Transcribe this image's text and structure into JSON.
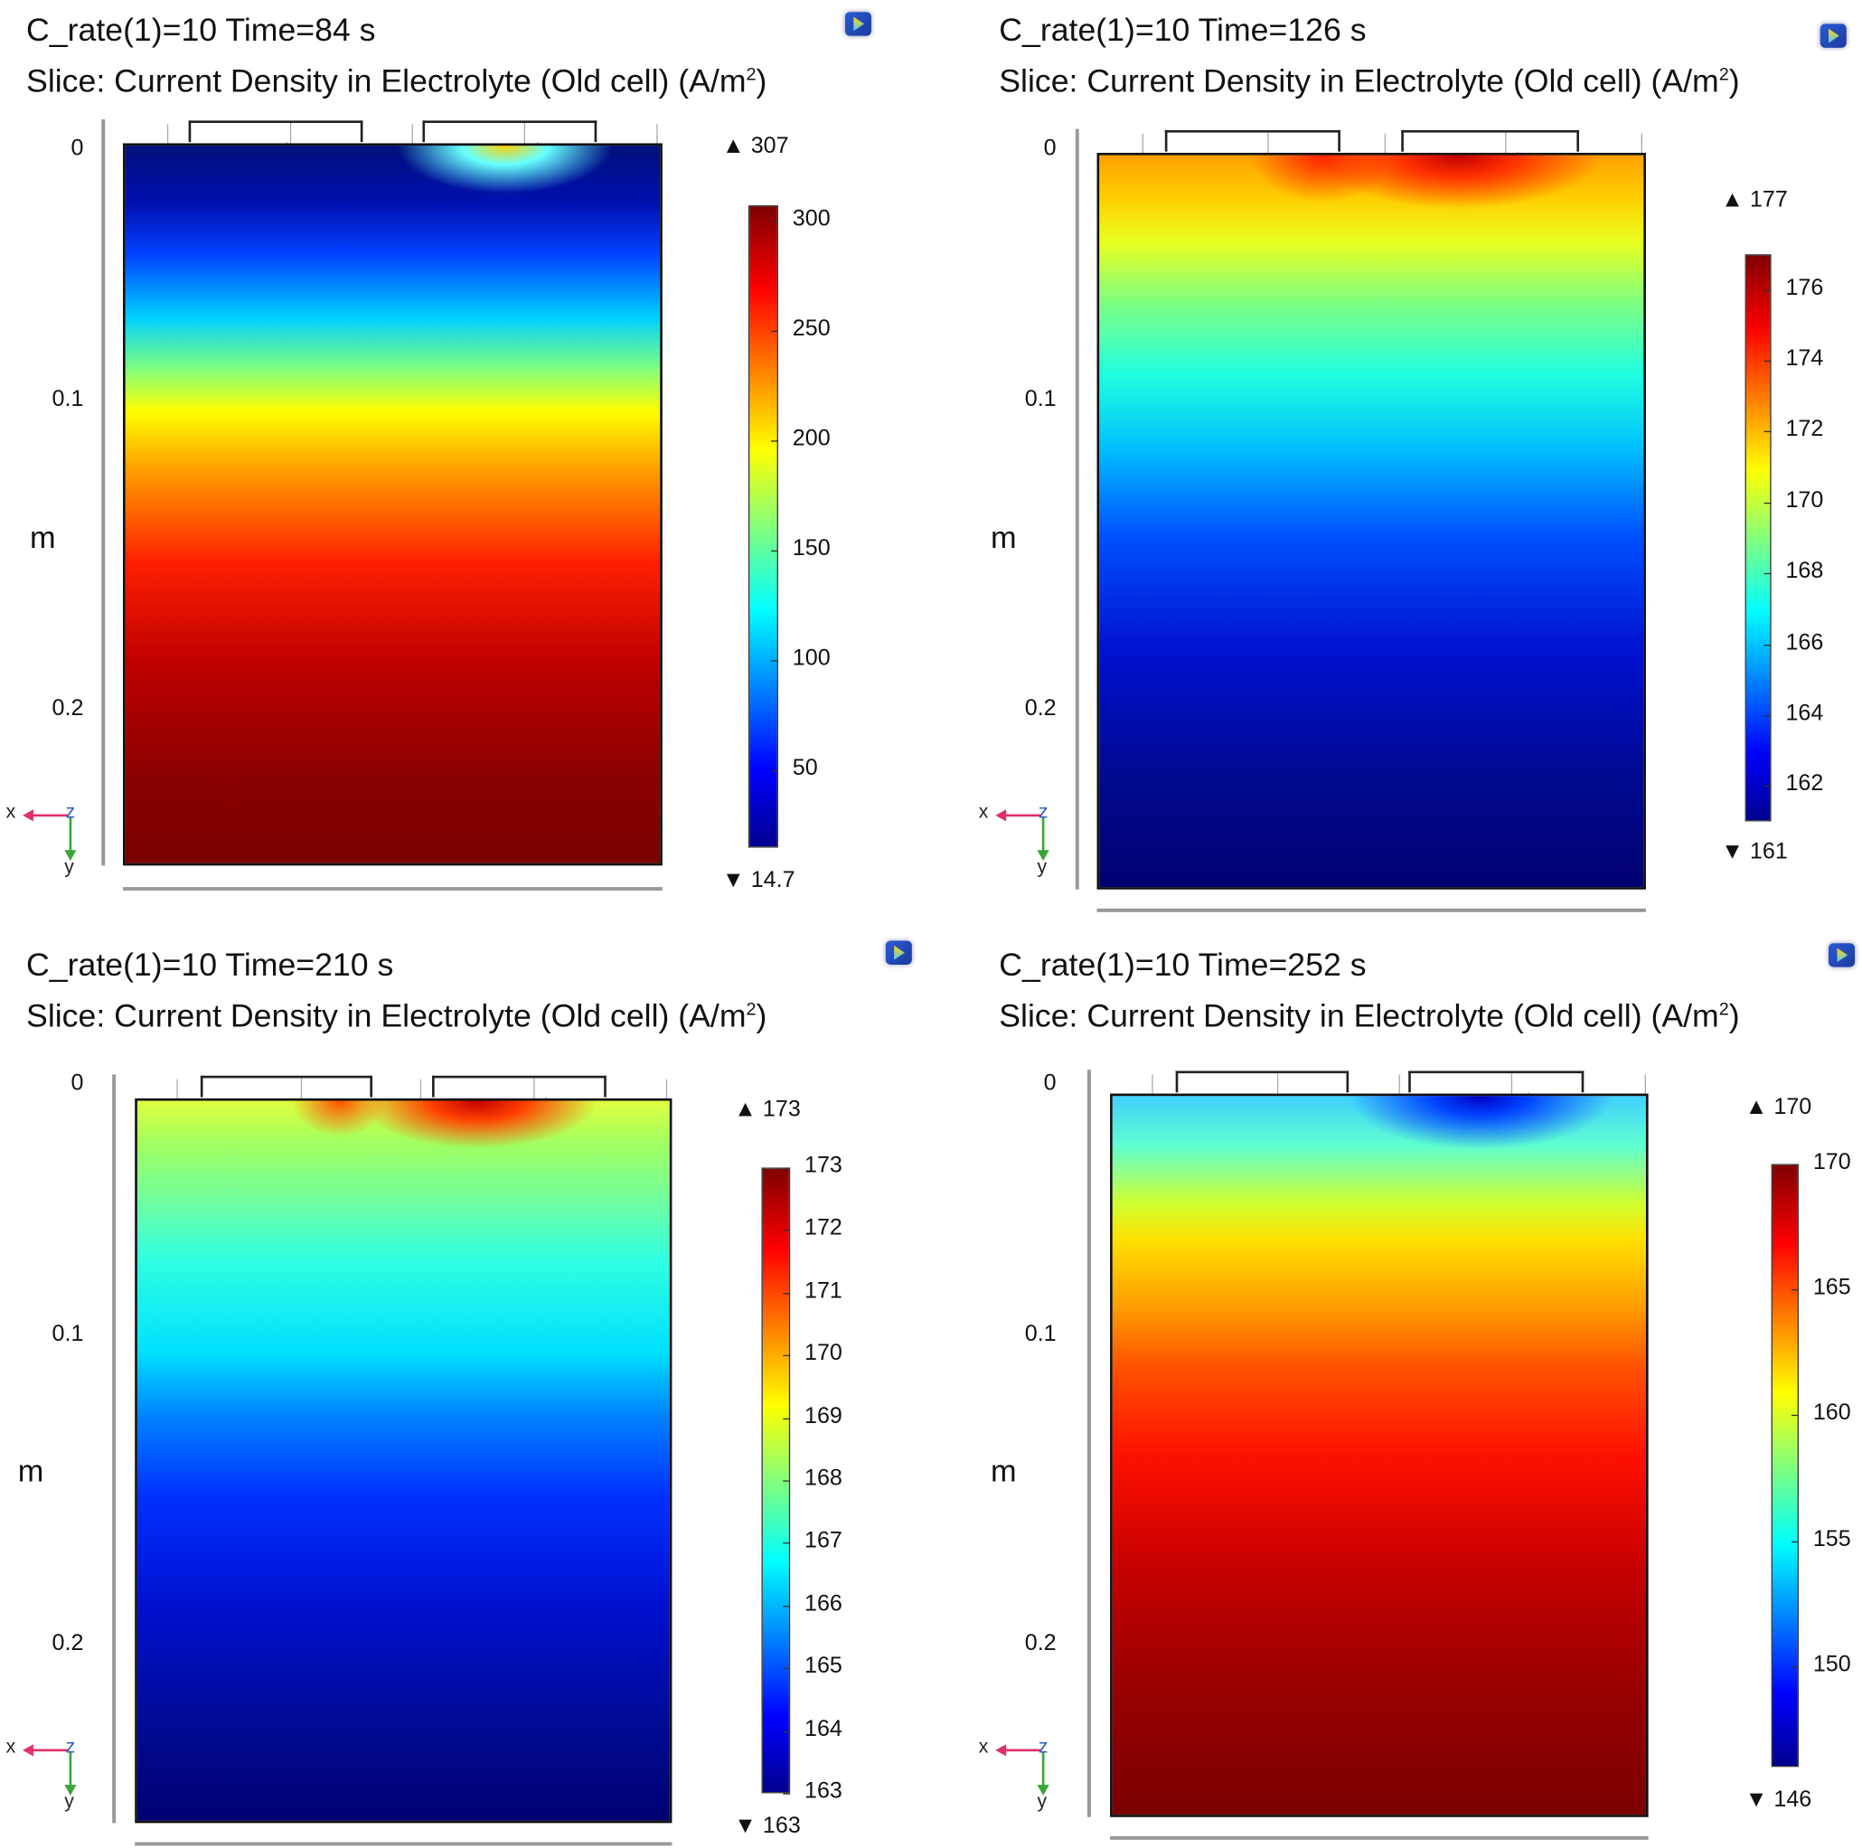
{
  "panels": [
    {
      "title_line1": "C_rate(1)=10  Time=84 s",
      "title_line2": "Slice: Current Density in Electrolyte (Old cell) (A/m",
      "title_sup": "2",
      "title_close": ")",
      "y_ticks": [
        "0",
        "0.1",
        "0.2"
      ],
      "y_unit": "m",
      "max_label": "▲ 307",
      "min_label": "▼ 14.7",
      "colorbar": {
        "min": 14.7,
        "max": 307,
        "ticks": [
          50,
          100,
          150,
          200,
          250,
          300
        ]
      },
      "triad": {
        "x": "x",
        "y": "y",
        "z": "z"
      }
    },
    {
      "title_line1": "C_rate(1)=10  Time=126 s",
      "title_line2": "Slice: Current Density in Electrolyte (Old cell) (A/m",
      "title_sup": "2",
      "title_close": ")",
      "y_ticks": [
        "0",
        "0.1",
        "0.2"
      ],
      "y_unit": "m",
      "max_label": "▲ 177",
      "min_label": "▼ 161",
      "colorbar": {
        "min": 161,
        "max": 177,
        "ticks": [
          162,
          164,
          166,
          168,
          170,
          172,
          174,
          176
        ]
      },
      "triad": {
        "x": "x",
        "y": "y",
        "z": "z"
      }
    },
    {
      "title_line1": "C_rate(1)=10  Time=210 s",
      "title_line2": "Slice: Current Density in Electrolyte (Old cell) (A/m",
      "title_sup": "2",
      "title_close": ")",
      "y_ticks": [
        "0",
        "0.1",
        "0.2"
      ],
      "y_unit": "m",
      "max_label": "▲ 173",
      "min_label": "▼ 163",
      "colorbar": {
        "min": 163,
        "max": 173,
        "ticks": [
          163,
          164,
          165,
          166,
          167,
          168,
          169,
          170,
          171,
          172,
          173
        ]
      },
      "triad": {
        "x": "x",
        "y": "y",
        "z": "z"
      }
    },
    {
      "title_line1": "C_rate(1)=10  Time=252 s",
      "title_line2": "Slice: Current Density in Electrolyte (Old cell) (A/m",
      "title_sup": "2",
      "title_close": ")",
      "y_ticks": [
        "0",
        "0.1",
        "0.2"
      ],
      "y_unit": "m",
      "max_label": "▲ 170",
      "min_label": "▼ 146",
      "colorbar": {
        "min": 146,
        "max": 170,
        "ticks": [
          150,
          155,
          160,
          165,
          170
        ]
      },
      "triad": {
        "x": "x",
        "y": "y",
        "z": "z"
      }
    }
  ],
  "colors": {
    "jet": [
      "#00008f",
      "#0000ff",
      "#00ffff",
      "#ffff00",
      "#ff0000",
      "#800000"
    ],
    "x_axis": "#e0306a",
    "y_axis": "#3aa63a",
    "z_axis": "#3060c0"
  }
}
